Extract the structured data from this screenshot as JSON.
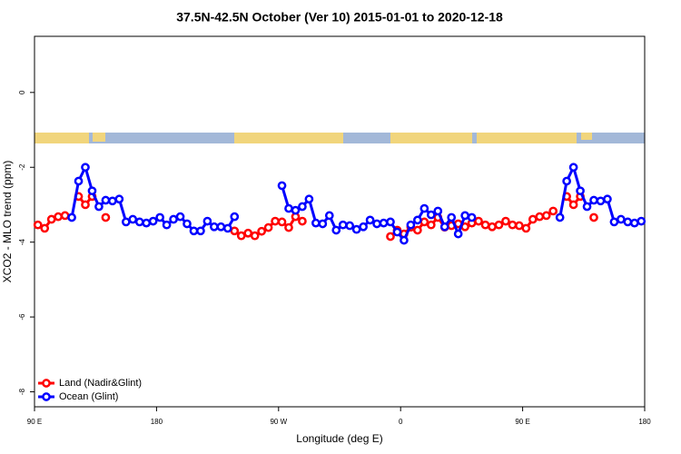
{
  "chart_data": {
    "type": "line",
    "title": "37.5N-42.5N October (Ver 10)   2015-01-01 to 2020-12-18",
    "xlabel": "Longitude (deg E)",
    "ylabel": "XCO2 - MLO trend (ppm)",
    "xlim": [
      90,
      540
    ],
    "ylim": [
      -8.4,
      1.5
    ],
    "xticks": [
      {
        "value": 90,
        "label": "90 E"
      },
      {
        "value": 180,
        "label": "180"
      },
      {
        "value": 270,
        "label": "90 W"
      },
      {
        "value": 360,
        "label": "0"
      },
      {
        "value": 450,
        "label": "90 E"
      },
      {
        "value": 540,
        "label": "180"
      }
    ],
    "yticks": [
      0,
      -2,
      -4,
      -6,
      -8
    ],
    "legend": "bottom-left",
    "x": [
      92.5,
      97.5,
      102.5,
      107.5,
      112.5,
      117.5,
      122.5,
      127.5,
      132.5,
      137.5,
      142.5,
      147.5,
      152.5,
      157.5,
      162.5,
      167.5,
      172.5,
      177.5,
      182.5,
      187.5,
      192.5,
      197.5,
      202.5,
      207.5,
      212.5,
      217.5,
      222.5,
      227.5,
      232.5,
      237.5,
      242.5,
      247.5,
      252.5,
      257.5,
      262.5,
      267.5,
      272.5,
      277.5,
      282.5,
      287.5,
      292.5,
      297.5,
      302.5,
      307.5,
      312.5,
      317.5,
      322.5,
      327.5,
      332.5,
      337.5,
      342.5,
      347.5,
      352.5,
      357.5,
      362.5,
      367.5,
      372.5,
      377.5,
      382.5,
      387.5,
      392.5,
      397.5,
      402.5,
      407.5,
      412.5,
      417.5,
      422.5,
      427.5,
      432.5,
      437.5,
      442.5,
      447.5,
      452.5,
      457.5,
      462.5,
      467.5,
      472.5,
      477.5,
      482.5,
      487.5,
      492.5,
      497.5,
      502.5,
      507.5,
      512.5,
      517.5,
      522.5,
      527.5,
      532.5,
      537.5
    ],
    "series": [
      {
        "name": "Land (Nadir&Glint)",
        "color": "#ff0000",
        "values": [
          -3.54,
          -3.63,
          -3.39,
          -3.32,
          -3.29,
          null,
          -2.78,
          -3.0,
          -2.78,
          null,
          -3.34,
          null,
          null,
          null,
          null,
          null,
          null,
          null,
          null,
          null,
          null,
          null,
          null,
          null,
          null,
          null,
          null,
          null,
          null,
          -3.7,
          -3.83,
          -3.76,
          -3.83,
          -3.71,
          -3.61,
          -3.44,
          -3.46,
          -3.61,
          -3.32,
          -3.44,
          null,
          null,
          null,
          null,
          null,
          null,
          null,
          null,
          null,
          null,
          null,
          null,
          -3.85,
          -3.68,
          -3.78,
          -3.6,
          -3.68,
          -3.46,
          -3.54,
          -3.34,
          -3.6,
          -3.56,
          -3.51,
          -3.59,
          -3.49,
          -3.44,
          -3.54,
          -3.59,
          -3.54,
          -3.44,
          -3.54,
          -3.56,
          -3.63,
          -3.39,
          -3.32,
          -3.29,
          -3.17,
          null,
          -2.78,
          -3.0,
          -2.78,
          null,
          -3.34,
          null,
          null,
          null,
          null,
          null,
          null,
          null
        ]
      },
      {
        "name": "Ocean (Glint)",
        "color": "#0000ff",
        "values": [
          null,
          null,
          null,
          null,
          null,
          -3.34,
          -2.37,
          -2.0,
          -2.63,
          -3.05,
          -2.88,
          -2.9,
          -2.85,
          -3.46,
          -3.39,
          -3.46,
          -3.49,
          -3.44,
          -3.34,
          -3.54,
          -3.39,
          -3.32,
          -3.51,
          -3.7,
          -3.7,
          -3.44,
          -3.59,
          -3.59,
          -3.63,
          -3.32,
          null,
          null,
          null,
          null,
          null,
          null,
          -2.49,
          -3.1,
          -3.15,
          -3.05,
          -2.85,
          -3.49,
          -3.51,
          -3.29,
          -3.68,
          -3.54,
          -3.56,
          -3.66,
          -3.59,
          -3.41,
          -3.51,
          -3.49,
          -3.46,
          -3.73,
          -3.95,
          -3.54,
          -3.41,
          -3.1,
          -3.27,
          -3.17,
          -3.59,
          -3.34,
          -3.78,
          -3.29,
          -3.34,
          null,
          null,
          null,
          null,
          null,
          null,
          null,
          null,
          null,
          null,
          null,
          null,
          -3.34,
          -2.37,
          -2.0,
          -2.63,
          -3.05,
          -2.88,
          -2.9,
          -2.85,
          -3.46,
          -3.39,
          -3.46,
          -3.49,
          -3.44
        ]
      }
    ]
  }
}
